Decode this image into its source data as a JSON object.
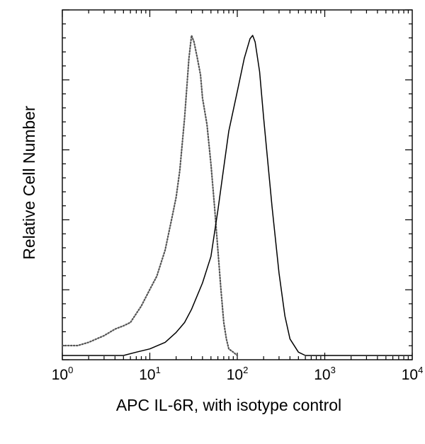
{
  "chart_data": {
    "type": "line",
    "title": "",
    "xlabel": "APC IL-6R, with isotype control",
    "ylabel": "Relative Cell Number",
    "x_scale": "log",
    "xlim": [
      1,
      10000
    ],
    "ylim": [
      0,
      100
    ],
    "grid": false,
    "legend": "none",
    "x_ticks": [
      {
        "value": 1,
        "base": "10",
        "exp": "0"
      },
      {
        "value": 10,
        "base": "10",
        "exp": "1"
      },
      {
        "value": 100,
        "base": "10",
        "exp": "2"
      },
      {
        "value": 1000,
        "base": "10",
        "exp": "3"
      },
      {
        "value": 10000,
        "base": "10",
        "exp": "4"
      }
    ],
    "series": [
      {
        "style": "dotted",
        "color": "#555555",
        "x": [
          1,
          1.5,
          2,
          3,
          4,
          5,
          6,
          8,
          10,
          12,
          15,
          18,
          20,
          22,
          25,
          28,
          30,
          32,
          35,
          38,
          40,
          45,
          50,
          55,
          60,
          65,
          70,
          75,
          80,
          90,
          100
        ],
        "y": [
          3,
          3,
          4,
          6,
          8,
          9,
          10,
          15,
          20,
          24,
          32,
          42,
          48,
          56,
          72,
          90,
          97,
          95,
          90,
          85,
          78,
          70,
          58,
          45,
          32,
          20,
          10,
          5,
          2,
          1,
          0
        ]
      },
      {
        "style": "solid",
        "color": "#000000",
        "x": [
          1,
          5,
          7,
          10,
          15,
          20,
          25,
          30,
          40,
          50,
          60,
          70,
          80,
          100,
          120,
          140,
          150,
          160,
          180,
          200,
          250,
          300,
          350,
          400,
          500,
          600,
          1000,
          10000
        ],
        "y": [
          0,
          0,
          1,
          2,
          4,
          7,
          10,
          14,
          22,
          30,
          44,
          57,
          68,
          80,
          90,
          96,
          97,
          95,
          86,
          72,
          45,
          25,
          12,
          5,
          1,
          0,
          0,
          0
        ]
      }
    ]
  }
}
